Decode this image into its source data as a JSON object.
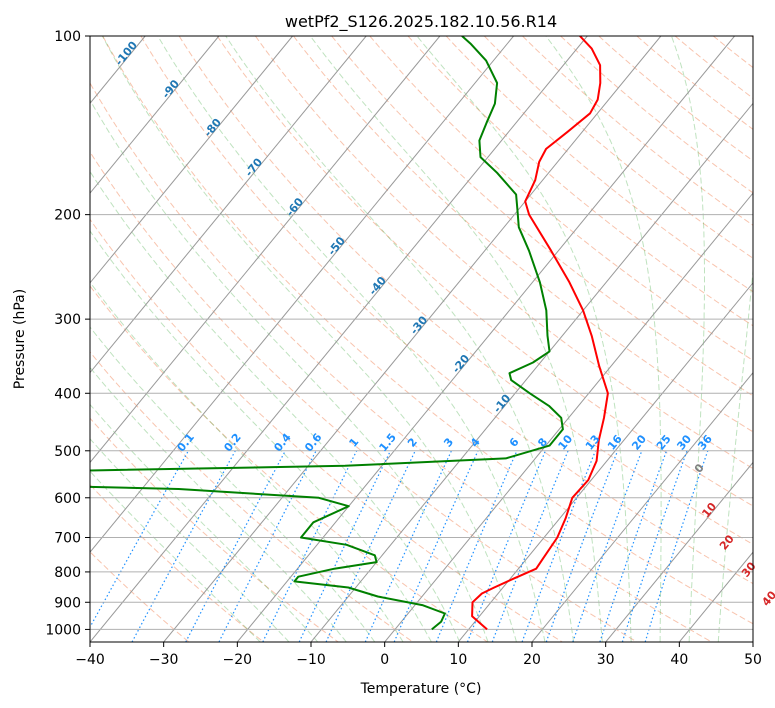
{
  "chart_data": {
    "type": "line",
    "subtype": "skew-t log-p diagram",
    "title": "wetPf2_S126.2025.182.10.56.R14",
    "xlabel": "Temperature (°C)",
    "ylabel": "Pressure (hPa)",
    "xlim": [
      -40,
      50
    ],
    "ylim": [
      1050,
      100
    ],
    "y_scale": "log",
    "grid": true,
    "x_ticks": [
      "−40",
      "−30",
      "−20",
      "−10",
      "0",
      "10",
      "20",
      "30",
      "40",
      "50"
    ],
    "x_tick_values": [
      -40,
      -30,
      -20,
      -10,
      0,
      10,
      20,
      30,
      40,
      50
    ],
    "y_ticks": [
      "100",
      "200",
      "300",
      "400",
      "500",
      "600",
      "700",
      "800",
      "900",
      "1000"
    ],
    "y_tick_values": [
      100,
      200,
      300,
      400,
      500,
      600,
      700,
      800,
      900,
      1000
    ],
    "isotherm_labels": {
      "color": "#1f77b4",
      "values": [
        "-100",
        "-90",
        "-80",
        "-70",
        "-60",
        "-50",
        "-40",
        "-30",
        "-20",
        "-10"
      ]
    },
    "mixing_ratio_labels": {
      "color": "#1e90ff",
      "pressure": 500,
      "values": [
        "0.1",
        "0.2",
        "0.4",
        "0.6",
        "1",
        "1.5",
        "2",
        "3",
        "4",
        "6",
        "8",
        "10",
        "13",
        "16",
        "20",
        "25",
        "30",
        "36"
      ],
      "mixing_ratios": [
        0.1,
        0.2,
        0.4,
        0.6,
        1,
        1.5,
        2,
        3,
        4,
        6,
        8,
        10,
        13,
        16,
        20,
        25,
        30,
        36
      ]
    },
    "moist_adiabat_labels": {
      "color": "#d62728",
      "values": [
        "0",
        "10",
        "20",
        "30",
        "40"
      ]
    },
    "series": [
      {
        "kind": "temperature",
        "color": "#ff0000",
        "points": [
          {
            "p": 1000,
            "t": 12.5
          },
          {
            "p": 950,
            "t": 9
          },
          {
            "p": 900,
            "t": 7.5
          },
          {
            "p": 870,
            "t": 7.8
          },
          {
            "p": 850,
            "t": 8.8
          },
          {
            "p": 820,
            "t": 10.5
          },
          {
            "p": 790,
            "t": 12.4
          },
          {
            "p": 760,
            "t": 12.2
          },
          {
            "p": 700,
            "t": 11.8
          },
          {
            "p": 650,
            "t": 10.8
          },
          {
            "p": 600,
            "t": 9.4
          },
          {
            "p": 560,
            "t": 9.6
          },
          {
            "p": 520,
            "t": 8.6
          },
          {
            "p": 480,
            "t": 6.6
          },
          {
            "p": 440,
            "t": 4.8
          },
          {
            "p": 400,
            "t": 2.6
          },
          {
            "p": 360,
            "t": -1.6
          },
          {
            "p": 320,
            "t": -6
          },
          {
            "p": 290,
            "t": -10
          },
          {
            "p": 260,
            "t": -15
          },
          {
            "p": 230,
            "t": -21
          },
          {
            "p": 200,
            "t": -28
          },
          {
            "p": 190,
            "t": -30
          },
          {
            "p": 175,
            "t": -31
          },
          {
            "p": 163,
            "t": -32.5
          },
          {
            "p": 155,
            "t": -33
          },
          {
            "p": 145,
            "t": -32
          },
          {
            "p": 135,
            "t": -31
          },
          {
            "p": 128,
            "t": -31.5
          },
          {
            "p": 120,
            "t": -33
          },
          {
            "p": 112,
            "t": -35
          },
          {
            "p": 105,
            "t": -38
          },
          {
            "p": 100,
            "t": -41
          }
        ]
      },
      {
        "kind": "dewpoint",
        "color": "#008000",
        "points": [
          {
            "p": 1000,
            "t": 5
          },
          {
            "p": 970,
            "t": 5.4
          },
          {
            "p": 940,
            "t": 5
          },
          {
            "p": 910,
            "t": 1
          },
          {
            "p": 880,
            "t": -6
          },
          {
            "p": 850,
            "t": -11
          },
          {
            "p": 830,
            "t": -19
          },
          {
            "p": 815,
            "t": -19
          },
          {
            "p": 790,
            "t": -15
          },
          {
            "p": 770,
            "t": -10
          },
          {
            "p": 750,
            "t": -11
          },
          {
            "p": 720,
            "t": -16
          },
          {
            "p": 700,
            "t": -23
          },
          {
            "p": 660,
            "t": -23
          },
          {
            "p": 620,
            "t": -20
          },
          {
            "p": 600,
            "t": -25
          },
          {
            "p": 580,
            "t": -45
          },
          {
            "p": 570,
            "t": -70
          },
          {
            "p": 555,
            "t": -80
          },
          {
            "p": 545,
            "t": -80
          },
          {
            "p": 540,
            "t": -60
          },
          {
            "p": 530,
            "t": -25
          },
          {
            "p": 515,
            "t": -4
          },
          {
            "p": 490,
            "t": 0.5
          },
          {
            "p": 460,
            "t": 0.5
          },
          {
            "p": 440,
            "t": -1
          },
          {
            "p": 420,
            "t": -4
          },
          {
            "p": 400,
            "t": -8
          },
          {
            "p": 380,
            "t": -12
          },
          {
            "p": 370,
            "t": -13
          },
          {
            "p": 355,
            "t": -11
          },
          {
            "p": 340,
            "t": -10
          },
          {
            "p": 320,
            "t": -12
          },
          {
            "p": 290,
            "t": -15
          },
          {
            "p": 260,
            "t": -19
          },
          {
            "p": 230,
            "t": -24
          },
          {
            "p": 210,
            "t": -28
          },
          {
            "p": 197,
            "t": -30
          },
          {
            "p": 185,
            "t": -32
          },
          {
            "p": 170,
            "t": -37
          },
          {
            "p": 160,
            "t": -41
          },
          {
            "p": 150,
            "t": -43
          },
          {
            "p": 140,
            "t": -44
          },
          {
            "p": 130,
            "t": -45
          },
          {
            "p": 120,
            "t": -47
          },
          {
            "p": 110,
            "t": -51
          },
          {
            "p": 103,
            "t": -55
          },
          {
            "p": 100,
            "t": -57
          }
        ]
      }
    ]
  }
}
